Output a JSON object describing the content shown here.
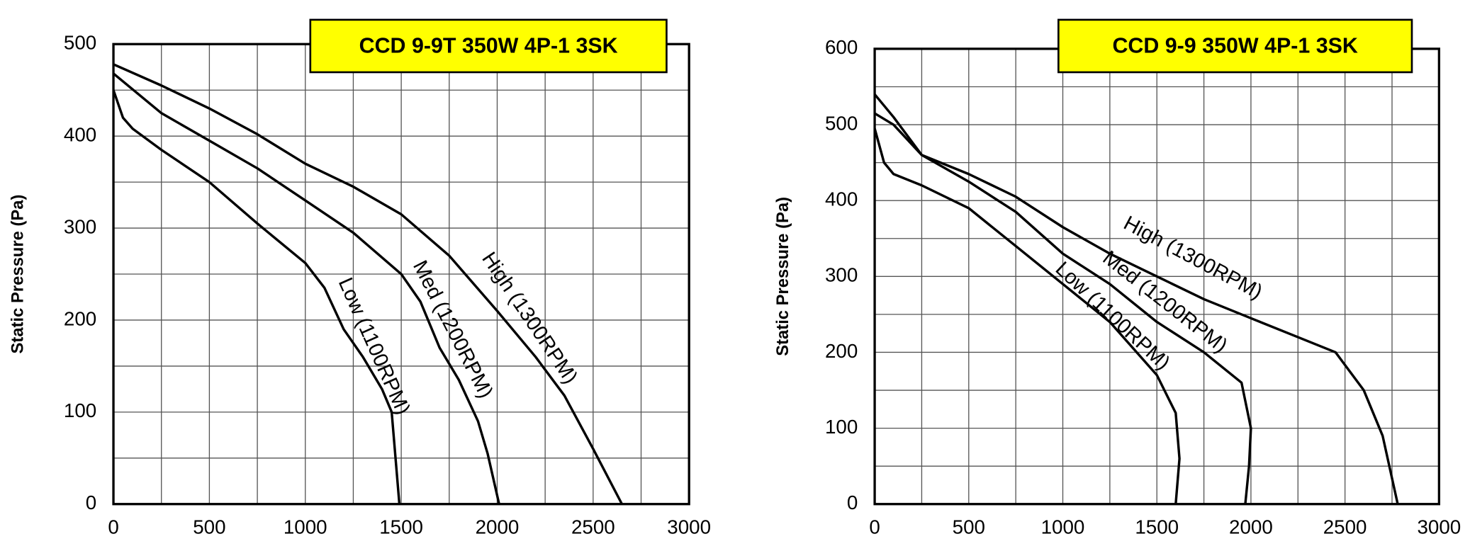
{
  "chart_data": [
    {
      "type": "line",
      "title": "CCD 9-9T 350W 4P-1 3SK",
      "y_label": "Static Pressure (Pa)",
      "xlim": [
        0,
        3000
      ],
      "xticks": [
        0,
        500,
        1000,
        1500,
        2000,
        2500,
        3000
      ],
      "ylim": [
        0,
        500
      ],
      "yticks": [
        0,
        100,
        200,
        300,
        400,
        500
      ],
      "grid": true,
      "series": [
        {
          "name": "Low (1100RPM)",
          "color": "#000000",
          "x": [
            0,
            50,
            100,
            250,
            500,
            750,
            1000,
            1100,
            1200,
            1300,
            1400,
            1450,
            1470,
            1490
          ],
          "values": [
            450,
            420,
            408,
            385,
            350,
            305,
            262,
            235,
            190,
            160,
            125,
            100,
            50,
            0
          ]
        },
        {
          "name": "Med (1200RPM)",
          "color": "#000000",
          "x": [
            0,
            250,
            500,
            750,
            1000,
            1250,
            1500,
            1600,
            1700,
            1800,
            1900,
            1950,
            2010
          ],
          "values": [
            468,
            425,
            395,
            365,
            330,
            295,
            250,
            220,
            170,
            135,
            90,
            55,
            0
          ]
        },
        {
          "name": "High (1300RPM)",
          "color": "#000000",
          "x": [
            0,
            250,
            500,
            750,
            1000,
            1250,
            1500,
            1750,
            2000,
            2200,
            2350,
            2500,
            2650
          ],
          "values": [
            478,
            455,
            430,
            402,
            370,
            345,
            315,
            270,
            210,
            160,
            118,
            60,
            0
          ]
        }
      ]
    },
    {
      "type": "line",
      "title": "CCD 9-9 350W 4P-1 3SK",
      "y_label": "Static Pressure (Pa)",
      "xlim": [
        0,
        3000
      ],
      "xticks": [
        0,
        500,
        1000,
        1500,
        2000,
        2500,
        3000
      ],
      "ylim": [
        0,
        600
      ],
      "yticks": [
        0,
        100,
        200,
        300,
        400,
        500,
        600
      ],
      "grid": true,
      "series": [
        {
          "name": "Low (1100RPM)",
          "color": "#000000",
          "x": [
            0,
            50,
            100,
            250,
            500,
            750,
            1000,
            1250,
            1500,
            1600,
            1620,
            1600
          ],
          "values": [
            495,
            450,
            435,
            420,
            390,
            340,
            290,
            240,
            170,
            120,
            60,
            0
          ]
        },
        {
          "name": "Med (1200RPM)",
          "color": "#000000",
          "x": [
            0,
            100,
            250,
            500,
            750,
            1000,
            1250,
            1500,
            1750,
            1950,
            2000,
            1990,
            1970
          ],
          "values": [
            515,
            500,
            460,
            425,
            385,
            330,
            290,
            240,
            200,
            160,
            100,
            50,
            0
          ]
        },
        {
          "name": "High (1300RPM)",
          "color": "#000000",
          "x": [
            0,
            100,
            250,
            500,
            750,
            1000,
            1250,
            1500,
            1750,
            2000,
            2250,
            2450,
            2600,
            2700,
            2780
          ],
          "values": [
            540,
            510,
            460,
            435,
            405,
            365,
            330,
            300,
            270,
            245,
            220,
            200,
            150,
            90,
            0
          ]
        }
      ]
    }
  ]
}
